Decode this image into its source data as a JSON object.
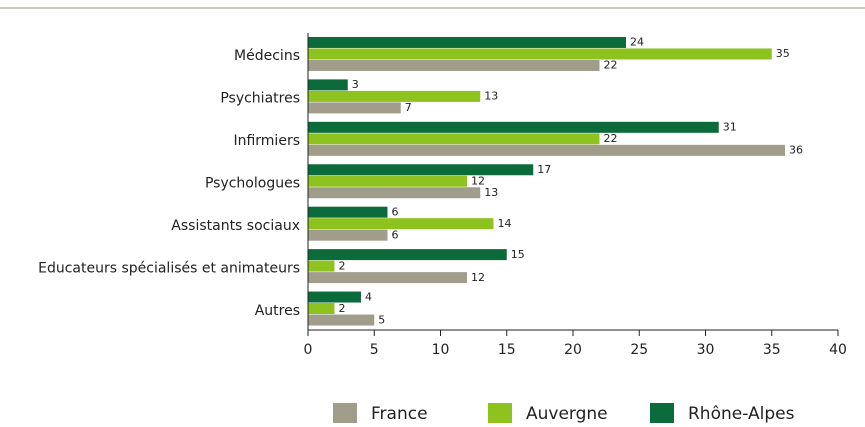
{
  "chart_data": {
    "type": "bar",
    "orientation": "horizontal",
    "categories": [
      "Médecins",
      "Psychiatres",
      "Infirmiers",
      "Psychologues",
      "Assistants sociaux",
      "Educateurs spécialisés et animateurs",
      "Autres"
    ],
    "series": [
      {
        "name": "France",
        "color": "#a09d8a",
        "values": [
          22,
          7,
          36,
          13,
          6,
          12,
          5
        ]
      },
      {
        "name": "Auvergne",
        "color": "#8dc21f",
        "values": [
          35,
          13,
          22,
          12,
          14,
          2,
          2
        ]
      },
      {
        "name": "Rhône-Alpes",
        "color": "#0b6b3a",
        "values": [
          24,
          3,
          31,
          17,
          6,
          15,
          4
        ]
      }
    ],
    "xlim": [
      0,
      40
    ],
    "xticks": [
      0,
      5,
      10,
      15,
      20,
      25,
      30,
      35,
      40
    ],
    "legend": "bottom"
  }
}
